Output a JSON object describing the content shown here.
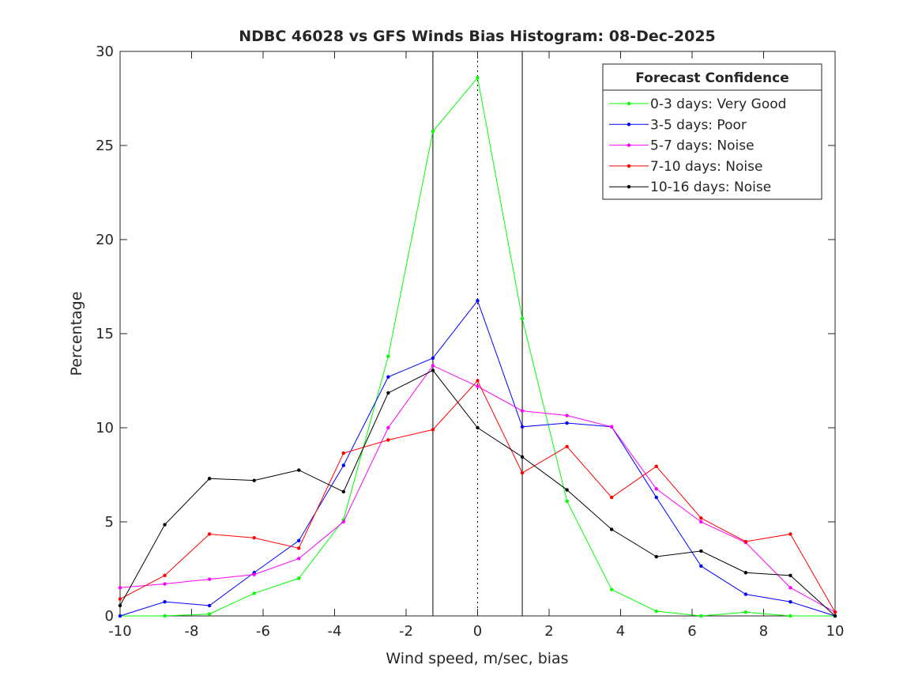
{
  "chart_data": {
    "type": "line",
    "title": "NDBC 46028 vs GFS Winds Bias Histogram: 08-Dec-2025",
    "xlabel": "Wind speed, m/sec, bias",
    "ylabel": "Percentage",
    "xlim": [
      -10,
      10
    ],
    "ylim": [
      0,
      30
    ],
    "xticks": [
      -10,
      -8,
      -6,
      -4,
      -2,
      0,
      2,
      4,
      6,
      8,
      10
    ],
    "yticks": [
      0,
      5,
      10,
      15,
      20,
      25,
      30
    ],
    "grid": false,
    "legend_title": "Forecast Confidence",
    "legend_placement": "top-right",
    "reference_lines": [
      {
        "x": -1.25,
        "style": "solid"
      },
      {
        "x": 0,
        "style": "dotted"
      },
      {
        "x": 1.25,
        "style": "solid"
      }
    ],
    "x": [
      -10,
      -8.75,
      -7.5,
      -6.25,
      -5,
      -3.75,
      -2.5,
      -1.25,
      0,
      1.25,
      2.5,
      3.75,
      5,
      6.25,
      7.5,
      8.75,
      10
    ],
    "series": [
      {
        "name": "0-3 days: Very Good",
        "color": "#00ff00",
        "values": [
          0,
          0,
          0.1,
          1.2,
          2.0,
          5.1,
          13.8,
          25.75,
          28.6,
          15.8,
          6.1,
          1.4,
          0.25,
          0,
          0.2,
          0,
          0
        ]
      },
      {
        "name": "3-5 days: Poor",
        "color": "#0000ff",
        "values": [
          0,
          0.75,
          0.55,
          2.3,
          4.0,
          8.0,
          12.7,
          13.7,
          16.75,
          10.05,
          10.25,
          10.05,
          6.3,
          2.65,
          1.15,
          0.75,
          0
        ]
      },
      {
        "name": "5-7 days: Noise",
        "color": "#ff00ff",
        "values": [
          1.5,
          1.7,
          1.95,
          2.2,
          3.05,
          5.0,
          10.0,
          13.3,
          12.2,
          10.9,
          10.65,
          10.05,
          6.75,
          5.0,
          3.9,
          1.5,
          0.2
        ]
      },
      {
        "name": "7-10 days: Noise",
        "color": "#ff0000",
        "values": [
          0.9,
          2.15,
          4.35,
          4.15,
          3.6,
          8.65,
          9.35,
          9.9,
          12.5,
          7.6,
          9.0,
          6.3,
          7.95,
          5.2,
          3.95,
          4.35,
          0.2
        ]
      },
      {
        "name": "10-16 days: Noise",
        "color": "#000000",
        "values": [
          0.55,
          4.85,
          7.3,
          7.2,
          7.75,
          6.6,
          11.85,
          13.05,
          10.0,
          8.45,
          6.7,
          4.6,
          3.15,
          3.45,
          2.3,
          2.15,
          0
        ]
      }
    ]
  }
}
